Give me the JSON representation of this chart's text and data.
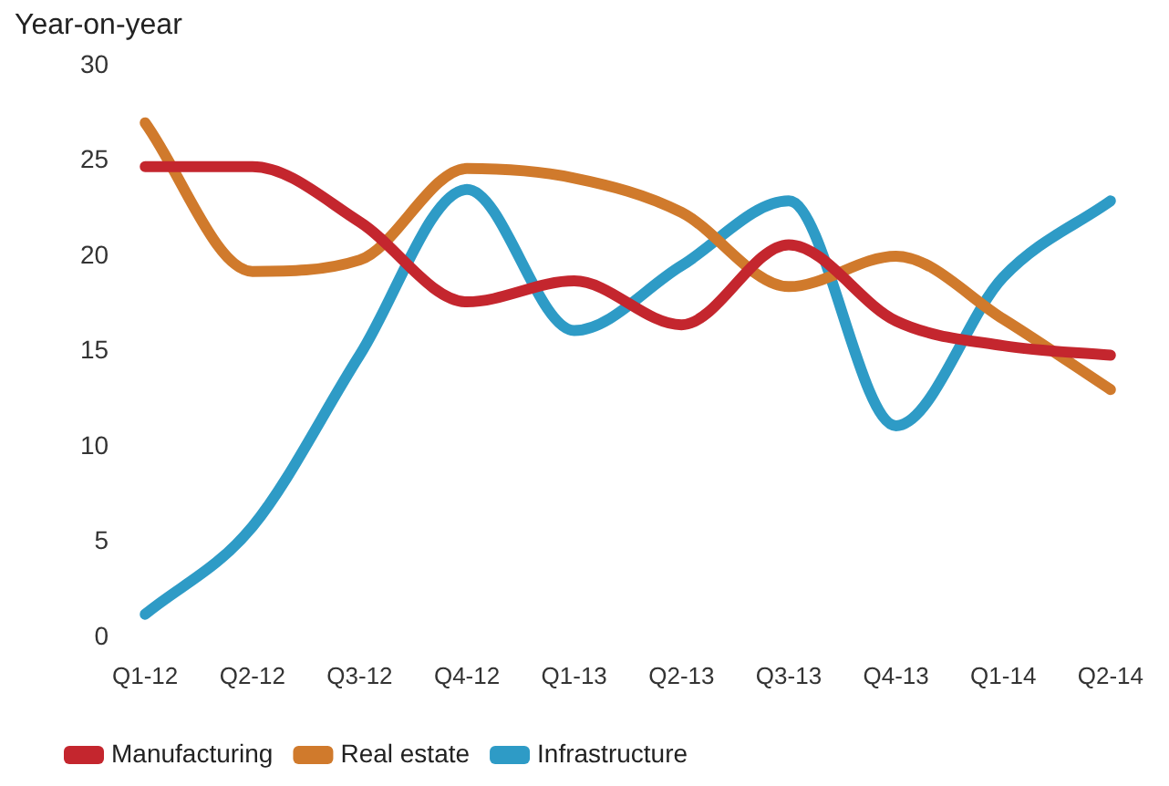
{
  "chart_data": {
    "type": "line",
    "ylabel": "Year-on-year",
    "categories": [
      "Q1-12",
      "Q2-12",
      "Q3-12",
      "Q4-12",
      "Q1-13",
      "Q2-13",
      "Q3-13",
      "Q4-13",
      "Q1-14",
      "Q2-14"
    ],
    "series": [
      {
        "name": "Manufacturing",
        "color": "#c4262e",
        "values": [
          24.7,
          24.7,
          21.8,
          17.6,
          18.7,
          16.4,
          20.6,
          16.6,
          15.3,
          14.8
        ]
      },
      {
        "name": "Real estate",
        "color": "#d07a2c",
        "values": [
          27.0,
          19.2,
          19.8,
          24.6,
          24.1,
          22.3,
          18.4,
          20.0,
          16.7,
          13.0
        ]
      },
      {
        "name": "Infrastructure",
        "color": "#2e9bc6",
        "values": [
          1.2,
          5.8,
          14.8,
          23.5,
          16.1,
          19.5,
          22.9,
          11.1,
          18.9,
          22.9
        ]
      }
    ],
    "ylim": [
      0,
      30
    ],
    "yticks": [
      0,
      5,
      10,
      15,
      20,
      25,
      30
    ],
    "grid": false,
    "legend": "bottom left",
    "marker": "none",
    "line_style": "solid"
  }
}
